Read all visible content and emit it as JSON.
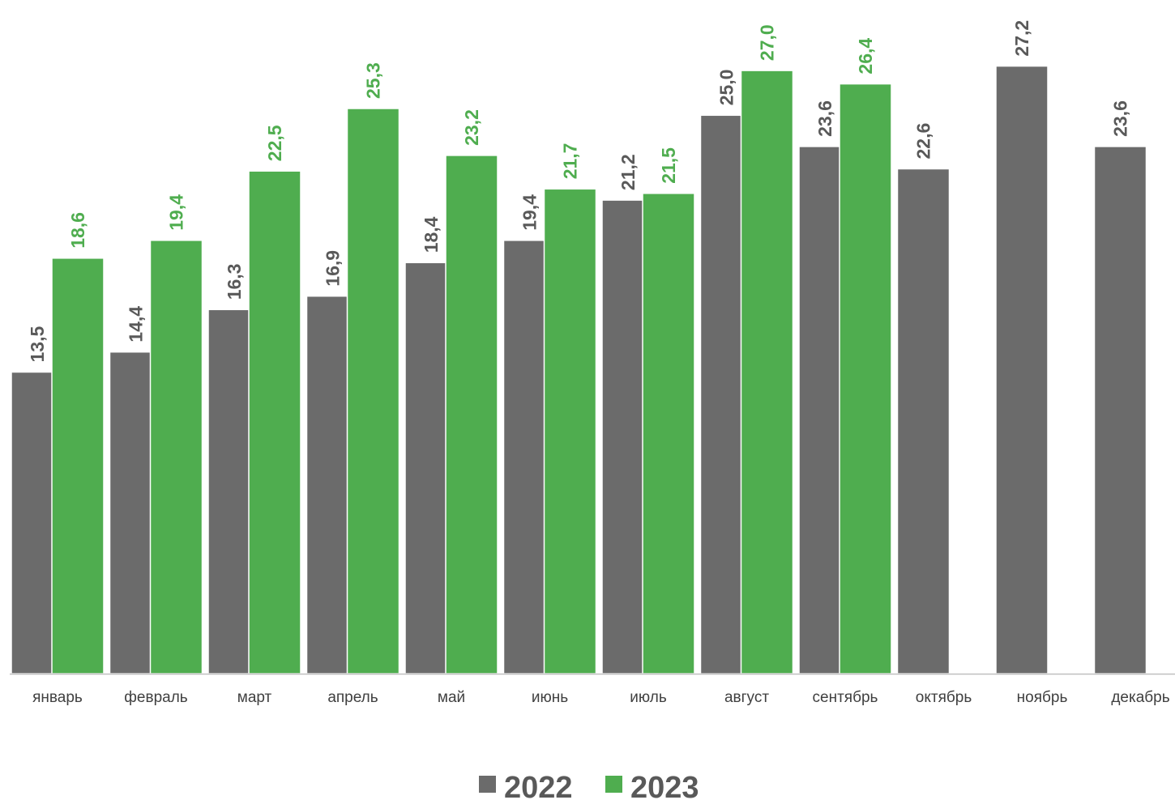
{
  "chart_data": {
    "type": "bar",
    "categories": [
      "январь",
      "февраль",
      "март",
      "апрель",
      "май",
      "июнь",
      "июль",
      "август",
      "сентябрь",
      "октябрь",
      "ноябрь",
      "декабрь"
    ],
    "series": [
      {
        "name": "2022",
        "color": "#6b6b6b",
        "label_color": "#595959",
        "values": [
          13.5,
          14.4,
          16.3,
          16.9,
          18.4,
          19.4,
          21.2,
          25.0,
          23.6,
          22.6,
          27.2,
          23.6
        ],
        "labels": [
          "13,5",
          "14,4",
          "16,3",
          "16,9",
          "18,4",
          "19,4",
          "21,2",
          "25,0",
          "23,6",
          "22,6",
          "27,2",
          "23,6"
        ]
      },
      {
        "name": "2023",
        "color": "#4fad4f",
        "label_color": "#4fad4f",
        "values": [
          18.6,
          19.4,
          22.5,
          25.3,
          23.2,
          21.7,
          21.5,
          27.0,
          26.4,
          null,
          null,
          null
        ],
        "labels": [
          "18,6",
          "19,4",
          "22,5",
          "25,3",
          "23,2",
          "21,7",
          "21,5",
          "27,0",
          "26,4",
          null,
          null,
          null
        ]
      }
    ],
    "title": "",
    "xlabel": "",
    "ylabel": "",
    "ylim": [
      0,
      30
    ],
    "grid": false,
    "legend": "bottom"
  }
}
